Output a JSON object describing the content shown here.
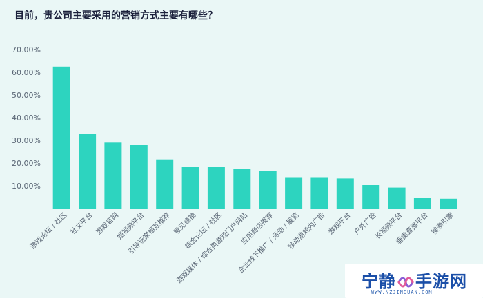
{
  "title": "目前，贵公司主要采用的营销方式主要有哪些？",
  "colors": {
    "bar": "#2dd4bf",
    "axis_text": "#5a6675",
    "title": "#1a1f3a",
    "background": "#eaf7f6"
  },
  "chart_data": {
    "type": "bar",
    "title": "目前，贵公司主要采用的营销方式主要有哪些？",
    "xlabel": "",
    "ylabel": "",
    "ylim": [
      0,
      70
    ],
    "yticks": [
      "70.00%",
      "60.00%",
      "50.00%",
      "40.00%",
      "30.00%",
      "20.00%",
      "10.00%"
    ],
    "ytick_values": [
      70,
      60,
      50,
      40,
      30,
      20,
      10
    ],
    "grid": false,
    "categories": [
      "游戏论坛 / 社区",
      "社交平台",
      "游戏官网",
      "短视频平台",
      "引导玩家相互推荐",
      "意见领袖",
      "综合论坛 / 社区",
      "游戏媒体 / 综合类游戏门户网站",
      "应用商店推荐",
      "企业线下推广 / 活动 / 展览",
      "移动游戏内广告",
      "游戏平台",
      "户外广告",
      "长视频平台",
      "垂类直播平台",
      "搜索引擎"
    ],
    "values": [
      62.5,
      32.9,
      29.0,
      28.0,
      21.6,
      18.3,
      18.2,
      17.5,
      16.4,
      13.8,
      13.8,
      13.2,
      10.3,
      9.2,
      4.6,
      4.3
    ]
  },
  "watermark": {
    "part1": "宁静",
    "part2": "手游网",
    "url": "WWW.NZJINGUAN.COM"
  }
}
